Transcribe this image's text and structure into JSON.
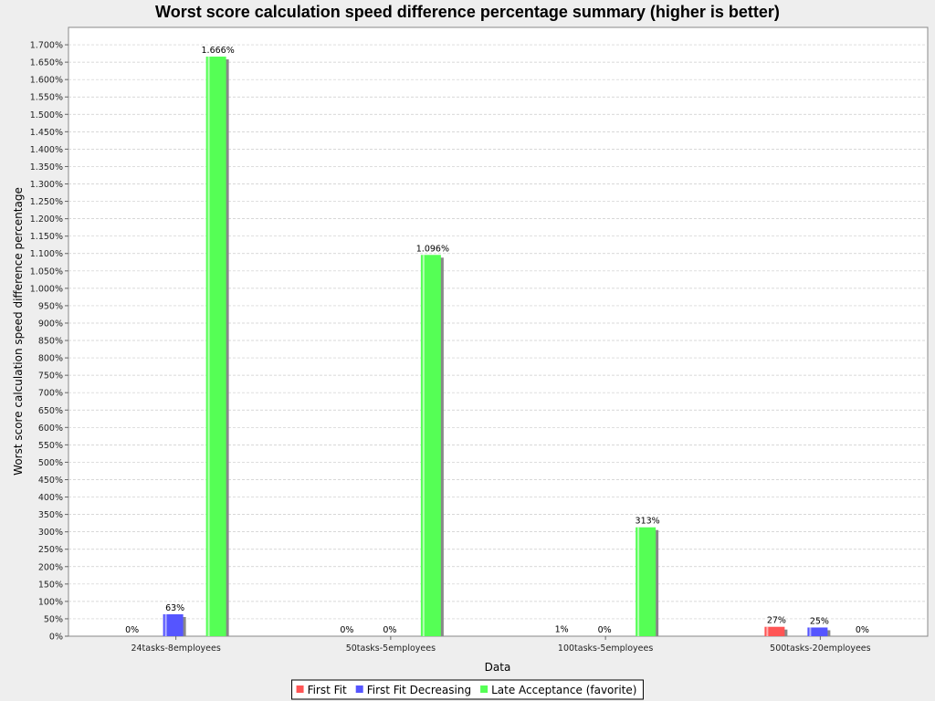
{
  "chart_data": {
    "type": "bar",
    "title": "Worst score calculation speed difference percentage summary (higher is better)",
    "xlabel": "Data",
    "ylabel": "Worst score calculation speed difference percentage",
    "categories": [
      "24tasks-8employees",
      "50tasks-5employees",
      "100tasks-5employees",
      "500tasks-20employees"
    ],
    "series": [
      {
        "name": "First Fit",
        "color": "#ff5555",
        "values": [
          0,
          0,
          1,
          27
        ],
        "labels": [
          "0%",
          "0%",
          "1%",
          "27%"
        ]
      },
      {
        "name": "First Fit Decreasing",
        "color": "#5555ff",
        "values": [
          63,
          0,
          0,
          25
        ],
        "labels": [
          "63%",
          "0%",
          "0%",
          "25%"
        ]
      },
      {
        "name": "Late Acceptance (favorite)",
        "color": "#55ff55",
        "values": [
          1666,
          1096,
          313,
          0
        ],
        "labels": [
          "1.666%",
          "1.096%",
          "313%",
          "0%"
        ]
      }
    ],
    "ylim": [
      0,
      1750
    ],
    "yticks": [
      0,
      50,
      100,
      150,
      200,
      250,
      300,
      350,
      400,
      450,
      500,
      550,
      600,
      650,
      700,
      750,
      800,
      850,
      900,
      950,
      1000,
      1050,
      1100,
      1150,
      1200,
      1250,
      1300,
      1350,
      1400,
      1450,
      1500,
      1550,
      1600,
      1650,
      1700
    ],
    "ytick_labels": [
      "0%",
      "50%",
      "100%",
      "150%",
      "200%",
      "250%",
      "300%",
      "350%",
      "400%",
      "450%",
      "500%",
      "550%",
      "600%",
      "650%",
      "700%",
      "750%",
      "800%",
      "850%",
      "900%",
      "950%",
      "1.000%",
      "1.050%",
      "1.100%",
      "1.150%",
      "1.200%",
      "1.250%",
      "1.300%",
      "1.350%",
      "1.400%",
      "1.450%",
      "1.500%",
      "1.550%",
      "1.600%",
      "1.650%",
      "1.700%"
    ],
    "grid": true,
    "legend_position": "bottom"
  }
}
